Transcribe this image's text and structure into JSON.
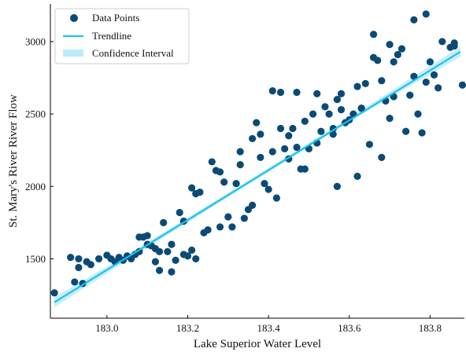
{
  "chart_data": {
    "type": "scatter",
    "xlabel": "Lake Superior Water Level",
    "ylabel": "St. Mary's River River Flow",
    "xlim": [
      182.86,
      183.885
    ],
    "ylim": [
      1090,
      3260
    ],
    "xticks": [
      183.0,
      183.2,
      183.4,
      183.6,
      183.8
    ],
    "xtick_labels": [
      "183.0",
      "183.2",
      "183.4",
      "183.6",
      "183.8"
    ],
    "yticks": [
      1500,
      2000,
      2500,
      3000
    ],
    "ytick_labels": [
      "1500",
      "2000",
      "2500",
      "3000"
    ],
    "legend": {
      "position": "top-left",
      "entries": [
        {
          "key": "points",
          "label": "Data Points"
        },
        {
          "key": "trend",
          "label": "Trendline"
        },
        {
          "key": "ci",
          "label": "Confidence Interval"
        }
      ]
    },
    "colors": {
      "points": "#0b4a75",
      "trend": "#18c2ee",
      "ci": "#bfeaf8"
    },
    "grid": false,
    "trendline": {
      "x": [
        182.87,
        183.875
      ],
      "y": [
        1200,
        2930
      ]
    },
    "confidence_interval": {
      "x": [
        182.87,
        183.05,
        183.25,
        183.45,
        183.65,
        183.875
      ],
      "lower": [
        1165,
        1488,
        1840,
        2185,
        2530,
        2895
      ],
      "upper": [
        1235,
        1528,
        1870,
        2215,
        2565,
        2965
      ]
    },
    "series": [
      {
        "name": "Data Points",
        "x": [
          182.87,
          182.91,
          182.92,
          182.93,
          182.94,
          182.95,
          182.93,
          182.96,
          182.98,
          183.0,
          183.02,
          183.01,
          183.03,
          183.04,
          183.05,
          183.06,
          183.07,
          183.08,
          183.09,
          183.1,
          183.1,
          183.11,
          183.12,
          183.13,
          183.13,
          183.14,
          183.15,
          183.16,
          183.17,
          183.18,
          183.19,
          183.19,
          183.2,
          183.21,
          183.21,
          183.22,
          183.23,
          183.24,
          183.25,
          183.26,
          183.27,
          183.28,
          183.29,
          183.3,
          183.31,
          183.32,
          183.33,
          183.34,
          183.35,
          183.36,
          183.36,
          183.37,
          183.38,
          183.39,
          183.4,
          183.41,
          183.42,
          183.43,
          183.44,
          183.45,
          183.45,
          183.46,
          183.47,
          183.48,
          183.49,
          183.5,
          183.51,
          183.52,
          183.53,
          183.54,
          183.55,
          183.56,
          183.57,
          183.58,
          183.59,
          183.6,
          183.61,
          183.62,
          183.63,
          183.64,
          183.65,
          183.66,
          183.67,
          183.68,
          183.69,
          183.7,
          183.71,
          183.72,
          183.73,
          183.75,
          183.76,
          183.77,
          183.78,
          183.79,
          183.8,
          183.81,
          183.82,
          183.85,
          183.86,
          183.88,
          183.47,
          183.52,
          183.56,
          183.63,
          183.68,
          183.74,
          183.79,
          183.83,
          183.43,
          183.38,
          183.33,
          183.28,
          183.58,
          183.66,
          183.71,
          183.86,
          183.57,
          183.49,
          183.41,
          183.62,
          183.7,
          183.76,
          183.08,
          183.12,
          183.16,
          183.22
        ],
        "y": [
          1265,
          1510,
          1340,
          1500,
          1330,
          1480,
          1440,
          1460,
          1500,
          1525,
          1480,
          1500,
          1510,
          1490,
          1520,
          1500,
          1530,
          1550,
          1650,
          1660,
          1600,
          1590,
          1480,
          1550,
          1420,
          1750,
          1550,
          1410,
          1490,
          1820,
          1760,
          1530,
          1520,
          1990,
          1560,
          1950,
          1960,
          1680,
          1700,
          2170,
          2110,
          1720,
          2030,
          1790,
          1720,
          2020,
          2150,
          1780,
          1840,
          2330,
          1870,
          2440,
          2200,
          2020,
          1980,
          2660,
          1920,
          2650,
          2260,
          2350,
          2190,
          2400,
          2270,
          2120,
          2450,
          2260,
          2500,
          2300,
          2380,
          2550,
          2500,
          2360,
          2600,
          2640,
          2440,
          2460,
          2500,
          2690,
          2540,
          2710,
          2290,
          2890,
          2870,
          2730,
          2590,
          2470,
          2860,
          2910,
          2950,
          2630,
          2760,
          2500,
          2370,
          2720,
          2860,
          2770,
          2680,
          2960,
          2990,
          2700,
          2650,
          2640,
          2400,
          2540,
          2200,
          2380,
          3190,
          3000,
          2400,
          2360,
          2240,
          2100,
          2530,
          3050,
          2620,
          2970,
          2000,
          2120,
          2240,
          2070,
          2980,
          3150,
          1650,
          1570,
          1600,
          1500
        ]
      }
    ]
  }
}
